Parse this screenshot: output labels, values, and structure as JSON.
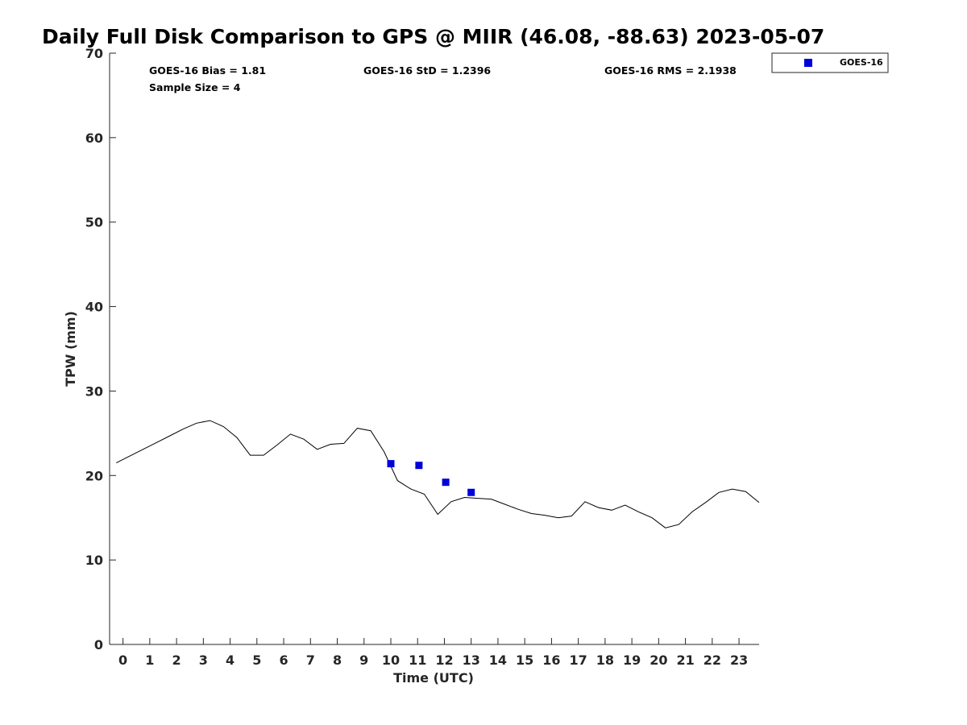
{
  "chart_data": {
    "type": "line",
    "title": "Daily Full Disk Comparison to GPS @ MIIR (46.08, -88.63) 2023-05-07",
    "xlabel": "Time (UTC)",
    "ylabel": "TPW (mm)",
    "xlim": [
      -0.5,
      23.75
    ],
    "ylim": [
      0,
      70
    ],
    "x_ticks": [
      "0",
      "1",
      "2",
      "3",
      "4",
      "5",
      "6",
      "7",
      "8",
      "9",
      "10",
      "11",
      "12",
      "13",
      "14",
      "15",
      "16",
      "17",
      "18",
      "19",
      "20",
      "21",
      "22",
      "23"
    ],
    "y_ticks": [
      "0",
      "10",
      "20",
      "30",
      "40",
      "50",
      "60",
      "70"
    ],
    "grid": false,
    "legend_position": "top-right (outside plot)",
    "stats": {
      "bias": "GOES-16 Bias = 1.81",
      "std": "GOES-16 StD = 1.2396",
      "rms": "GOES-16 RMS = 2.1938",
      "sample": "Sample Size = 4"
    },
    "series": [
      {
        "kind": "line",
        "color": "#000000",
        "x": [
          -0.25,
          0.25,
          0.75,
          1.25,
          1.75,
          2.25,
          2.75,
          3.25,
          3.75,
          4.25,
          4.75,
          5.25,
          5.75,
          6.25,
          6.75,
          7.25,
          7.75,
          8.25,
          8.75,
          9.25,
          9.75,
          10.25,
          10.75,
          11.25,
          11.75,
          12.25,
          12.75,
          13.25,
          13.75,
          14.25,
          14.75,
          15.25,
          15.75,
          16.25,
          16.75,
          17.25,
          17.75,
          18.25,
          18.75,
          19.25,
          19.75,
          20.25,
          20.75,
          21.25,
          21.75,
          22.25,
          22.75,
          23.25,
          23.75
        ],
        "values": [
          21.5,
          22.3,
          23.1,
          23.9,
          24.7,
          25.5,
          26.2,
          26.5,
          25.8,
          24.5,
          22.4,
          22.4,
          23.6,
          24.9,
          24.3,
          23.1,
          23.7,
          23.8,
          25.6,
          25.3,
          22.8,
          19.4,
          18.4,
          17.8,
          15.4,
          16.9,
          17.4,
          17.3,
          17.2,
          16.6,
          16.0,
          15.5,
          15.3,
          15.0,
          15.2,
          16.9,
          16.2,
          15.9,
          16.5,
          15.7,
          15.0,
          13.8,
          14.2,
          15.7,
          16.8,
          18.0,
          18.4,
          18.1,
          16.8
        ]
      },
      {
        "kind": "scatter",
        "name": "GOES-16",
        "color": "#0000dd",
        "x": [
          10.0,
          11.05,
          12.05,
          13.0
        ],
        "values": [
          21.4,
          21.2,
          19.2,
          18.0
        ]
      }
    ]
  }
}
